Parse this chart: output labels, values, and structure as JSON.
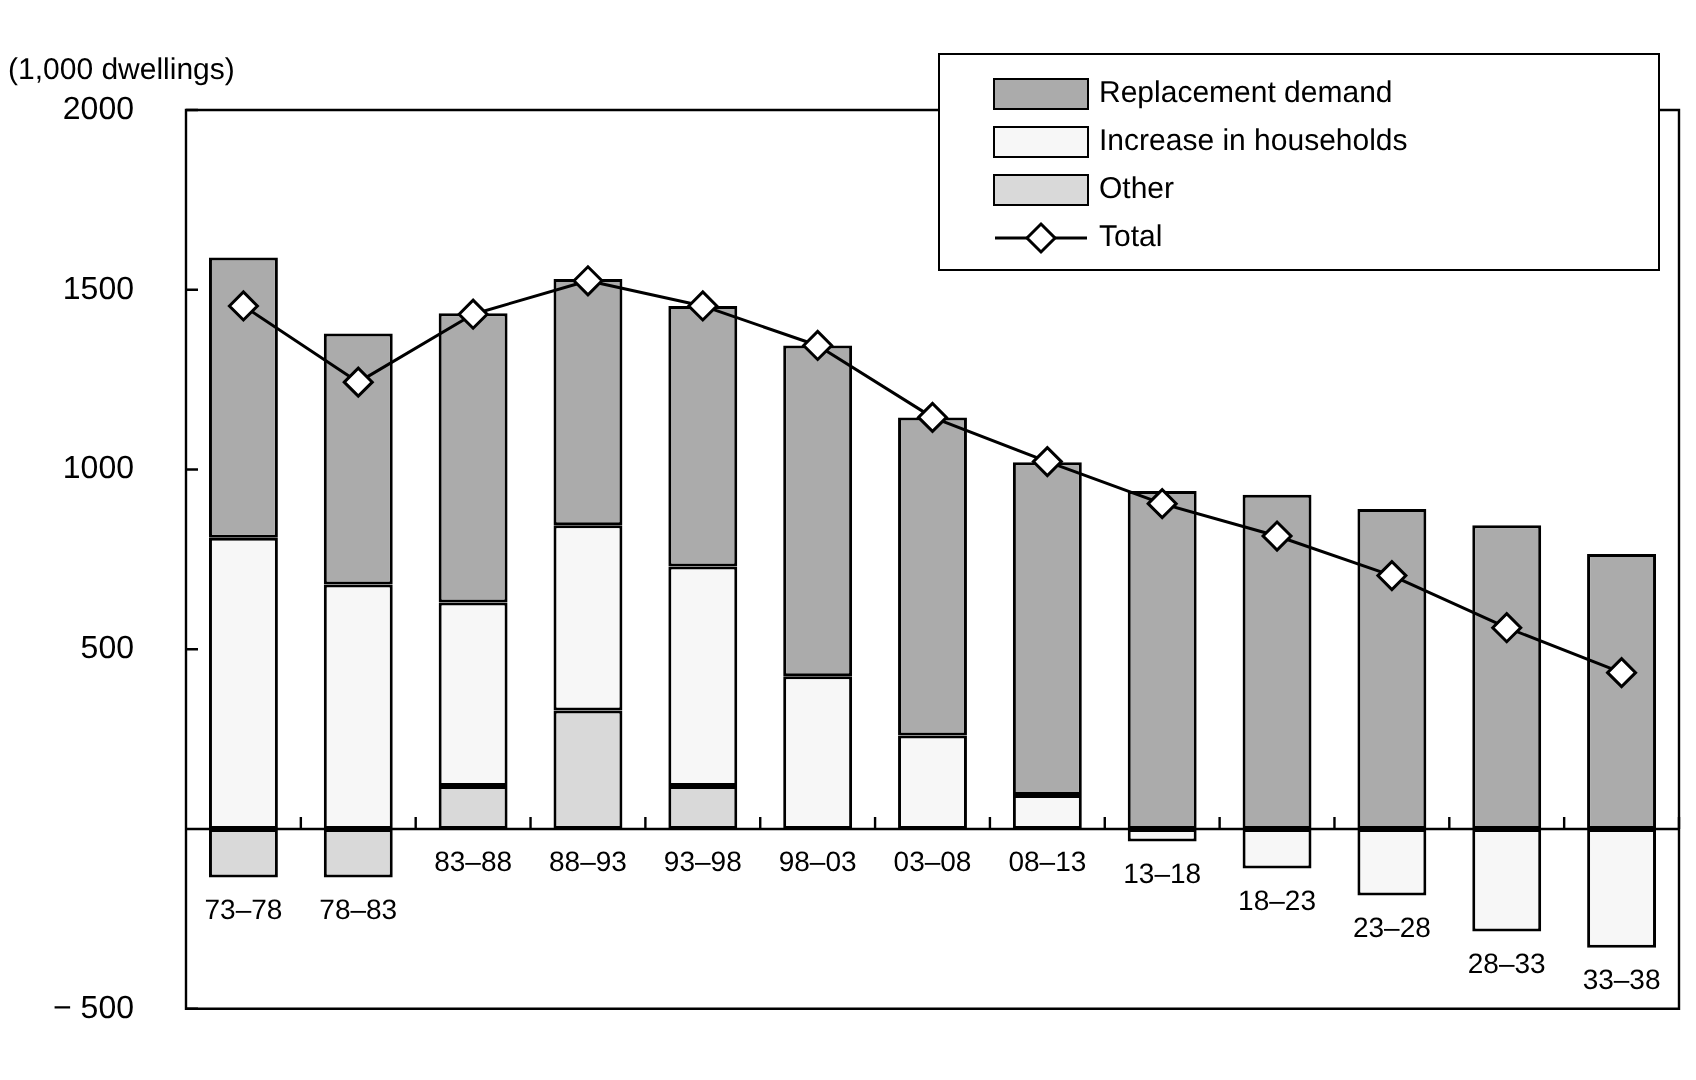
{
  "chart_data": {
    "type": "bar",
    "stacked": true,
    "ylabel": "(1,000 dwellings)",
    "categories": [
      "73–78",
      "78–83",
      "83–88",
      "88–93",
      "93–98",
      "98–03",
      "03–08",
      "08–13",
      "13–18",
      "18–23",
      "23–28",
      "28–33",
      "33–38"
    ],
    "series": [
      {
        "name": "Other",
        "color": "#d9d9d9",
        "values": [
          -135,
          -135,
          120,
          330,
          120,
          0,
          0,
          0,
          0,
          0,
          0,
          0,
          0
        ]
      },
      {
        "name": "Increase in households",
        "color": "#f7f7f7",
        "values": [
          810,
          680,
          510,
          515,
          610,
          425,
          260,
          95,
          -35,
          -110,
          -185,
          -285,
          -330
        ]
      },
      {
        "name": "Replacement demand",
        "color": "#ababab",
        "values": [
          780,
          698,
          805,
          685,
          725,
          920,
          885,
          925,
          940,
          930,
          890,
          845,
          765
        ]
      },
      {
        "name": "Total",
        "type": "line",
        "color": "#000000",
        "marker": "diamond",
        "values": [
          1455,
          1243,
          1432,
          1525,
          1455,
          1345,
          1145,
          1022,
          905,
          815,
          705,
          560,
          435
        ]
      }
    ],
    "ylim": [
      -500,
      2000
    ],
    "yticks": [
      {
        "value": -500,
        "label": "− 500"
      },
      {
        "value": 0,
        "label": null
      },
      500,
      1000,
      1500,
      2000
    ],
    "grid": false,
    "legend": "top right"
  }
}
